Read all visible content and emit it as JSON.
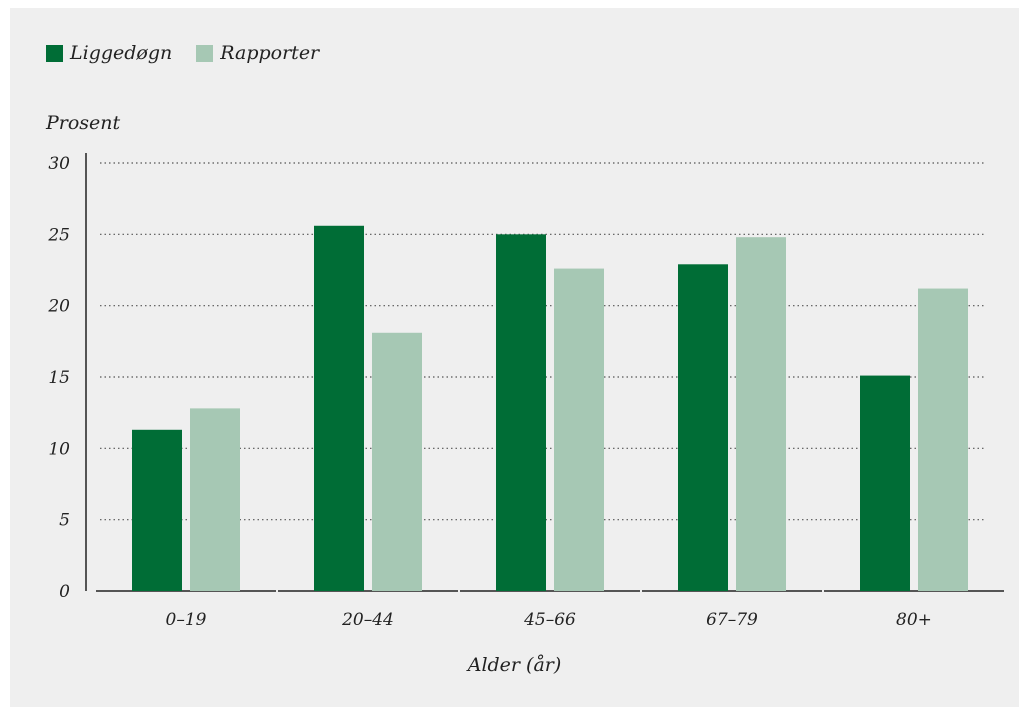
{
  "chart_data": {
    "type": "bar",
    "categories": [
      "0–19",
      "20–44",
      "45–66",
      "67–79",
      "80+"
    ],
    "series": [
      {
        "name": "Liggedøgn",
        "color": "#006d36",
        "values": [
          11.3,
          25.6,
          25.0,
          22.9,
          15.1
        ]
      },
      {
        "name": "Rapporter",
        "color": "#a6c8b4",
        "values": [
          12.8,
          18.1,
          22.6,
          24.8,
          21.2
        ]
      }
    ],
    "ylabel": "Prosent",
    "xlabel": "Alder (år)",
    "ylim": [
      0,
      30
    ],
    "yticks": [
      "0",
      "5",
      "10",
      "15",
      "20",
      "25",
      "30"
    ],
    "grid": "dotted horizontal",
    "legend": "top-left"
  }
}
